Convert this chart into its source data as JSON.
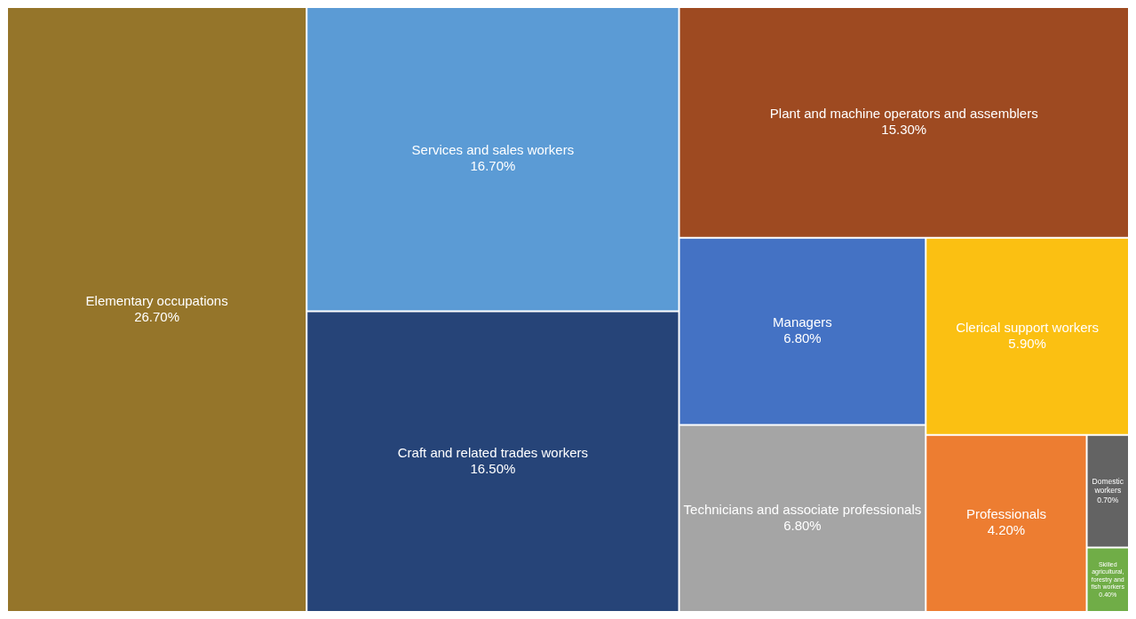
{
  "chart_data": {
    "type": "other",
    "categories": [
      "Elementary occupations",
      "Services and sales workers",
      "Craft and related trades workers",
      "Plant and machine operators and assemblers",
      "Managers",
      "Technicians and associate professionals",
      "Clerical support workers",
      "Professionals",
      "Domestic workers",
      "Skilled agricultural, forestry and fish workers"
    ],
    "values": [
      26.7,
      16.7,
      16.5,
      15.3,
      6.8,
      6.8,
      5.9,
      4.2,
      0.7,
      0.4
    ],
    "value_labels": [
      "26.70%",
      "16.70%",
      "16.50%",
      "15.30%",
      "6.80%",
      "6.80%",
      "5.90%",
      "4.20%",
      "0.70%",
      "0.40%"
    ],
    "colors": [
      "#95752a",
      "#5b9bd5",
      "#264478",
      "#9e4a21",
      "#4472c4",
      "#a5a5a5",
      "#fbc012",
      "#ed7d31",
      "#636363",
      "#70ad47"
    ]
  }
}
